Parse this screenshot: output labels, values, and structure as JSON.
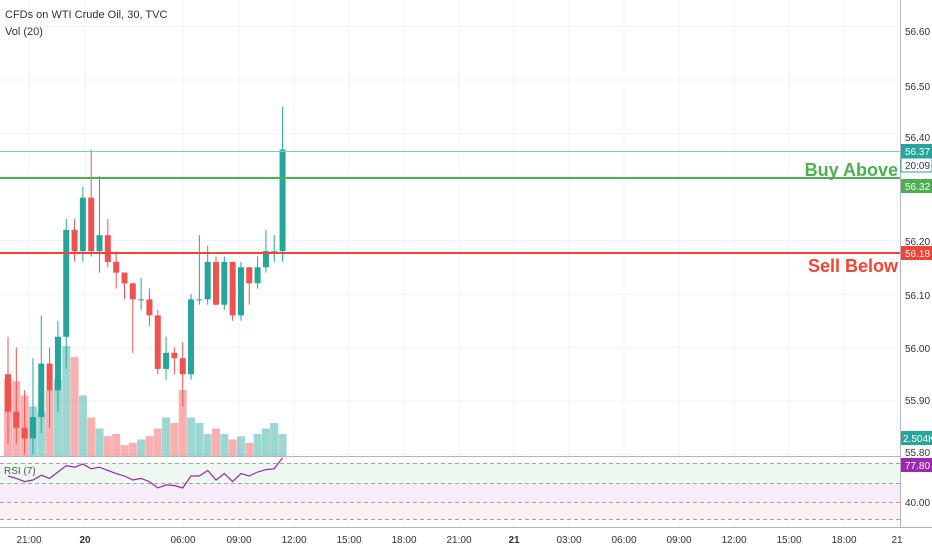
{
  "header": {
    "title": "CFDs on WTI Crude Oil, 30, TVC",
    "volume_label": "Vol (20)"
  },
  "price_axis": {
    "ticks": [
      "56.60",
      "56.50",
      "56.40",
      "56.20",
      "56.10",
      "56.00",
      "55.90",
      "55.80"
    ],
    "badges": {
      "last": "56.37",
      "countdown": "20:09",
      "buy": "56.32",
      "sell": "56.18",
      "volume": "2.504K",
      "rsi": "77.80"
    }
  },
  "annotations": {
    "buy_label": "Buy Above",
    "sell_label": "Sell Below"
  },
  "rsi": {
    "label": "RSI (7)",
    "tick": "40.00"
  },
  "time_axis": {
    "labels": [
      "21:00",
      "20",
      "06:00",
      "09:00",
      "12:00",
      "15:00",
      "18:00",
      "21:00",
      "21",
      "03:00",
      "06:00",
      "09:00",
      "12:00",
      "15:00",
      "18:00",
      "21"
    ]
  },
  "colors": {
    "up": "#26a69a",
    "down": "#ef5350",
    "buy_line": "#4caf50",
    "sell_line": "#f44336",
    "last_line": "#80cbc4",
    "rsi_line": "#9c27b0",
    "grid": "#f0f3fa"
  },
  "chart_data": {
    "type": "candlestick",
    "title": "CFDs on WTI Crude Oil, 30, TVC",
    "timeframe": "30",
    "ylim": [
      55.79,
      56.64
    ],
    "yticks": [
      55.8,
      55.9,
      56.0,
      56.1,
      56.2,
      56.4,
      56.5,
      56.6
    ],
    "levels": {
      "buy_above": 56.32,
      "sell_below": 56.18,
      "last": 56.37
    },
    "ohlc": [
      {
        "o": 55.95,
        "h": 56.02,
        "l": 55.82,
        "c": 55.88
      },
      {
        "o": 55.88,
        "h": 56.0,
        "l": 55.82,
        "c": 55.85
      },
      {
        "o": 55.85,
        "h": 55.92,
        "l": 55.8,
        "c": 55.83
      },
      {
        "o": 55.83,
        "h": 55.98,
        "l": 55.8,
        "c": 55.87
      },
      {
        "o": 55.87,
        "h": 56.06,
        "l": 55.84,
        "c": 55.97
      },
      {
        "o": 55.97,
        "h": 56.0,
        "l": 55.85,
        "c": 55.92
      },
      {
        "o": 55.92,
        "h": 56.05,
        "l": 55.88,
        "c": 56.02
      },
      {
        "o": 56.02,
        "h": 56.24,
        "l": 55.96,
        "c": 56.22
      },
      {
        "o": 56.22,
        "h": 56.24,
        "l": 56.16,
        "c": 56.18
      },
      {
        "o": 56.18,
        "h": 56.3,
        "l": 56.16,
        "c": 56.28
      },
      {
        "o": 56.28,
        "h": 56.37,
        "l": 56.17,
        "c": 56.18
      },
      {
        "o": 56.18,
        "h": 56.32,
        "l": 56.14,
        "c": 56.21
      },
      {
        "o": 56.21,
        "h": 56.24,
        "l": 56.15,
        "c": 56.16
      },
      {
        "o": 56.16,
        "h": 56.18,
        "l": 56.11,
        "c": 56.14
      },
      {
        "o": 56.14,
        "h": 56.14,
        "l": 56.09,
        "c": 56.12
      },
      {
        "o": 56.12,
        "h": 56.12,
        "l": 55.99,
        "c": 56.09
      },
      {
        "o": 56.09,
        "h": 56.13,
        "l": 56.07,
        "c": 56.09
      },
      {
        "o": 56.09,
        "h": 56.11,
        "l": 56.04,
        "c": 56.06
      },
      {
        "o": 56.06,
        "h": 56.07,
        "l": 55.95,
        "c": 55.96
      },
      {
        "o": 55.96,
        "h": 56.02,
        "l": 55.94,
        "c": 55.99
      },
      {
        "o": 55.99,
        "h": 56.0,
        "l": 55.95,
        "c": 55.98
      },
      {
        "o": 55.98,
        "h": 56.01,
        "l": 55.89,
        "c": 55.95
      },
      {
        "o": 55.95,
        "h": 56.1,
        "l": 55.94,
        "c": 56.09
      },
      {
        "o": 56.09,
        "h": 56.21,
        "l": 56.08,
        "c": 56.09
      },
      {
        "o": 56.09,
        "h": 56.19,
        "l": 56.08,
        "c": 56.16
      },
      {
        "o": 56.16,
        "h": 56.17,
        "l": 56.08,
        "c": 56.08
      },
      {
        "o": 56.08,
        "h": 56.17,
        "l": 56.07,
        "c": 56.16
      },
      {
        "o": 56.16,
        "h": 56.16,
        "l": 56.05,
        "c": 56.06
      },
      {
        "o": 56.06,
        "h": 56.16,
        "l": 56.05,
        "c": 56.15
      },
      {
        "o": 56.15,
        "h": 56.15,
        "l": 56.08,
        "c": 56.12
      },
      {
        "o": 56.12,
        "h": 56.17,
        "l": 56.11,
        "c": 56.15
      },
      {
        "o": 56.15,
        "h": 56.22,
        "l": 56.14,
        "c": 56.18
      },
      {
        "o": 56.18,
        "h": 56.21,
        "l": 56.16,
        "c": 56.18
      },
      {
        "o": 56.18,
        "h": 56.45,
        "l": 56.16,
        "c": 56.37
      }
    ],
    "volume": [
      0.7,
      0.68,
      0.55,
      0.45,
      0.4,
      0.6,
      0.7,
      1.0,
      0.9,
      0.55,
      0.35,
      0.25,
      0.18,
      0.2,
      0.1,
      0.12,
      0.15,
      0.18,
      0.25,
      0.35,
      0.3,
      0.6,
      0.35,
      0.3,
      0.2,
      0.25,
      0.2,
      0.15,
      0.18,
      0.12,
      0.2,
      0.25,
      0.3,
      0.2
    ],
    "volume_last": "2.504K",
    "rsi": {
      "period": 7,
      "last": 77.8,
      "levels": [
        70,
        30
      ],
      "values": [
        55,
        52,
        48,
        50,
        56,
        52,
        60,
        68,
        66,
        70,
        64,
        66,
        62,
        58,
        55,
        50,
        52,
        48,
        40,
        44,
        43,
        40,
        55,
        55,
        62,
        50,
        58,
        48,
        58,
        55,
        60,
        63,
        64,
        77.8
      ]
    }
  }
}
